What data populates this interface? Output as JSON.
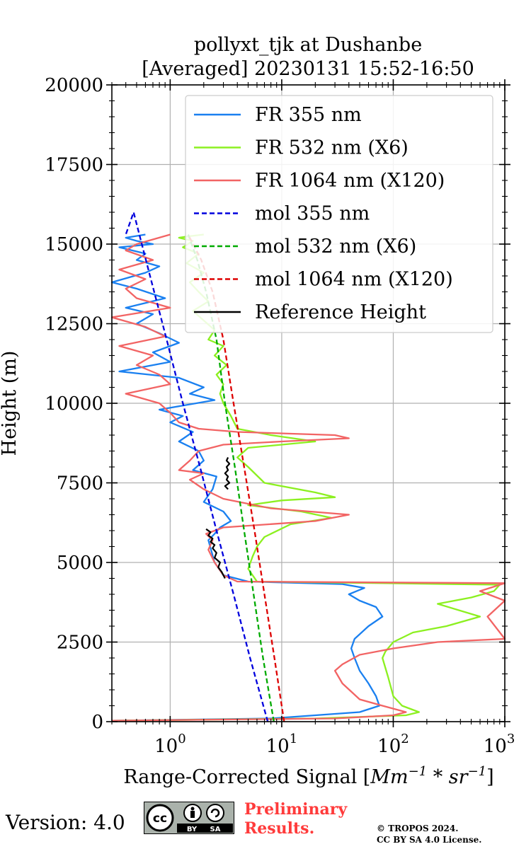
{
  "chart_data": {
    "type": "line",
    "title_line1": "pollyxt_tjk at Dushanbe",
    "title_line2": "[Averaged] 20230131 15:52-16:50",
    "xlabel_prefix": "Range-Corrected Signal [",
    "xlabel_math": "Mm",
    "xlabel_sup1": "−1",
    "xlabel_mid": " * ",
    "xlabel_math2": "sr",
    "xlabel_sup2": "−1",
    "xlabel_suffix": "]",
    "ylabel": "Height (m)",
    "xscale": "log",
    "xlim": [
      0.3,
      1000
    ],
    "ylim": [
      0,
      20000
    ],
    "grid": true,
    "legend_position": "top-right",
    "y_ticks": [
      "0",
      "2500",
      "5000",
      "7500",
      "10000",
      "12500",
      "15000",
      "17500",
      "20000"
    ],
    "x_ticks": [
      {
        "value": 1,
        "base": "10",
        "exp": "0"
      },
      {
        "value": 10,
        "base": "10",
        "exp": "1"
      },
      {
        "value": 100,
        "base": "10",
        "exp": "2"
      },
      {
        "value": 1000,
        "base": "10",
        "exp": "3"
      }
    ],
    "series": [
      {
        "name": "FR 355 nm",
        "color": "#1a80f0",
        "style": "solid",
        "x": [
          0.3,
          8,
          50,
          75,
          70,
          60,
          50,
          45,
          42,
          45,
          60,
          80,
          70,
          50,
          40,
          55,
          35,
          5,
          3,
          2.5,
          2.2,
          2.5,
          2.8,
          3.5,
          3,
          2,
          2.4,
          2.6,
          1.6,
          2,
          1.8,
          1.2,
          1.6,
          1.0,
          1.3,
          0.8,
          2.5,
          1.5,
          2.0,
          1.2,
          0.35,
          1.0,
          0.7,
          1.2,
          0.8,
          0.5,
          0.7,
          0.4,
          0.9,
          0.5,
          0.3,
          0.6,
          0.8,
          0.5,
          0.6,
          0.35,
          0.7,
          0.5,
          0.4,
          0.6
        ],
        "y": [
          30,
          100,
          300,
          500,
          800,
          1200,
          1600,
          2000,
          2300,
          2600,
          3000,
          3300,
          3600,
          3800,
          4000,
          4200,
          4320,
          4400,
          4600,
          5000,
          5700,
          5900,
          6100,
          6300,
          6600,
          6900,
          7300,
          7700,
          7900,
          8200,
          8500,
          8800,
          9100,
          9400,
          9600,
          9800,
          10100,
          10300,
          10500,
          10800,
          11000,
          11300,
          11600,
          11900,
          12200,
          12500,
          12800,
          13000,
          13300,
          13600,
          13800,
          14100,
          14300,
          14500,
          14700,
          14900,
          15000,
          15100,
          15200,
          15300
        ]
      },
      {
        "name": "FR 532 nm (X6)",
        "color": "#8cf020",
        "style": "solid",
        "x": [
          0.3,
          20,
          130,
          170,
          120,
          100,
          90,
          80,
          85,
          100,
          150,
          300,
          600,
          250,
          500,
          800,
          900,
          6,
          5,
          5.5,
          6,
          7,
          12,
          28,
          15,
          5,
          10,
          30,
          20,
          7,
          5,
          4,
          5,
          20,
          8,
          4,
          3.5,
          3,
          2.8,
          3,
          2.6,
          3.2,
          2.5,
          3,
          2.2,
          2.5,
          2.0,
          1.6,
          2.2,
          1.8,
          1.5,
          2.0,
          1.4,
          1.8,
          1.3,
          1.6,
          1.2,
          1.5,
          2.0
        ],
        "y": [
          30,
          100,
          200,
          300,
          500,
          800,
          1400,
          2000,
          2200,
          2500,
          2800,
          3000,
          3300,
          3700,
          3900,
          4100,
          4300,
          4400,
          4800,
          5200,
          5500,
          5800,
          6200,
          6400,
          6600,
          6800,
          6950,
          7050,
          7200,
          7500,
          8000,
          8300,
          8600,
          8800,
          9000,
          9200,
          9600,
          10000,
          10300,
          10600,
          10900,
          11200,
          11500,
          11800,
          12000,
          12300,
          12600,
          12900,
          13200,
          13500,
          13800,
          14100,
          14400,
          14700,
          14900,
          15100,
          15200,
          15250,
          15300
        ]
      },
      {
        "name": "FR 1064 nm (X120)",
        "color": "#f26464",
        "style": "solid",
        "x": [
          0.3,
          30,
          100,
          130,
          80,
          50,
          35,
          30,
          35,
          50,
          100,
          250,
          1000,
          700,
          1000,
          600,
          1000,
          4,
          3,
          2.5,
          2.2,
          2.4,
          2.1,
          3,
          20,
          40,
          8,
          3,
          2,
          1.5,
          2,
          1.2,
          1.5,
          1.8,
          3,
          10,
          40,
          30,
          4,
          1.8,
          1.2,
          1.0,
          0.8,
          0.4,
          1.0,
          0.8,
          0.5,
          0.7,
          0.35,
          0.9,
          0.6,
          0.3,
          1.0,
          0.5,
          0.4,
          0.6,
          0.35,
          0.7,
          0.4,
          0.5,
          1.0
        ],
        "y": [
          30,
          100,
          200,
          300,
          500,
          700,
          1200,
          1600,
          1800,
          2100,
          2300,
          2500,
          2600,
          3300,
          3800,
          4100,
          4350,
          4400,
          4600,
          5000,
          5400,
          5700,
          5900,
          6100,
          6300,
          6500,
          6700,
          7000,
          7300,
          7600,
          7800,
          7900,
          8200,
          8500,
          8700,
          8800,
          8900,
          9000,
          9100,
          9200,
          9400,
          9700,
          10000,
          10300,
          10600,
          10900,
          11200,
          11500,
          11800,
          12100,
          12400,
          12700,
          13000,
          13300,
          13600,
          13900,
          14200,
          14500,
          14800,
          15000,
          15300
        ]
      },
      {
        "name": "mol 355 nm",
        "color": "#0000dd",
        "style": "dashed",
        "x": [
          7.5,
          5.2,
          3.7,
          2.6,
          1.85,
          1.3,
          0.93,
          0.66,
          0.47,
          0.4
        ],
        "y": [
          0,
          2000,
          4000,
          6000,
          8000,
          10000,
          12000,
          14000,
          16000,
          15300
        ]
      },
      {
        "name": "mol 532 nm (X6)",
        "color": "#00aa00",
        "style": "dashed",
        "x": [
          8.5,
          6.8,
          5.6,
          4.6,
          3.8,
          3.1,
          2.6,
          2.1,
          1.75,
          1.45
        ],
        "y": [
          0,
          2000,
          4000,
          6000,
          8000,
          10000,
          12000,
          13500,
          14500,
          15300
        ]
      },
      {
        "name": "mol 1064 nm (X120)",
        "color": "#dd0000",
        "style": "dashed",
        "x": [
          10.5,
          8.6,
          7.0,
          5.7,
          4.6,
          3.7,
          3.0,
          2.4,
          1.9,
          1.45
        ],
        "y": [
          0,
          2000,
          4000,
          6000,
          8000,
          10000,
          12000,
          13500,
          14500,
          15300
        ]
      },
      {
        "name": "Reference Height",
        "color": "#000000",
        "style": "solid",
        "segments": [
          {
            "x": [
              3.1,
              2.9,
              2.7,
              2.8,
              2.5,
              2.6,
              2.4,
              2.5,
              2.3,
              2.4,
              2.2,
              2.3,
              2.1
            ],
            "y": [
              4500,
              4700,
              4850,
              5000,
              5150,
              5300,
              5450,
              5550,
              5650,
              5750,
              5850,
              5950,
              6050
            ]
          },
          {
            "x": [
              3.3,
              3.1,
              3.4,
              3.2,
              3.3,
              3.1,
              3.3,
              3.2,
              3.4,
              3.2,
              3.3
            ],
            "y": [
              7300,
              7400,
              7500,
              7600,
              7700,
              7800,
              7900,
              8000,
              8100,
              8200,
              8300
            ]
          }
        ]
      }
    ]
  },
  "footer": {
    "version": "Version: 4.0",
    "badge_cc": "cc",
    "badge_by": "BY",
    "badge_sa": "SA",
    "prelim_line1": "Preliminary",
    "prelim_line2": "Results.",
    "copyright_line1": "© TROPOS 2024.",
    "copyright_line2": "CC BY SA 4.0 License."
  }
}
